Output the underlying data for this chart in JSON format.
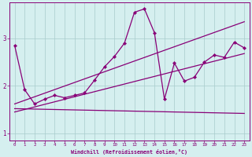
{
  "xlabel": "Windchill (Refroidissement éolien,°C)",
  "bg_color": "#d5efef",
  "grid_color": "#a8cccc",
  "line_color": "#880077",
  "xlim": [
    -0.5,
    23.5
  ],
  "ylim": [
    0.85,
    3.75
  ],
  "yticks": [
    1,
    2,
    3
  ],
  "xticks": [
    0,
    1,
    2,
    3,
    4,
    5,
    6,
    7,
    8,
    9,
    10,
    11,
    12,
    13,
    14,
    15,
    16,
    17,
    18,
    19,
    20,
    21,
    22,
    23
  ],
  "line_main_x": [
    0,
    1,
    2,
    3,
    4,
    5,
    6,
    7,
    8,
    9,
    10,
    11,
    12,
    13,
    14,
    15,
    16,
    17,
    18,
    19,
    20,
    21,
    22,
    23
  ],
  "line_main_y": [
    2.85,
    1.92,
    1.62,
    1.72,
    1.8,
    1.75,
    1.8,
    1.85,
    2.12,
    2.4,
    2.62,
    2.9,
    3.55,
    3.62,
    3.12,
    1.72,
    2.48,
    2.1,
    2.18,
    2.5,
    2.65,
    2.6,
    2.92,
    2.8
  ],
  "line2_x": [
    0,
    23
  ],
  "line2_y": [
    1.62,
    3.35
  ],
  "line3_x": [
    0,
    23
  ],
  "line3_y": [
    1.45,
    2.68
  ],
  "line4_x": [
    0,
    23
  ],
  "line4_y": [
    1.52,
    1.42
  ]
}
